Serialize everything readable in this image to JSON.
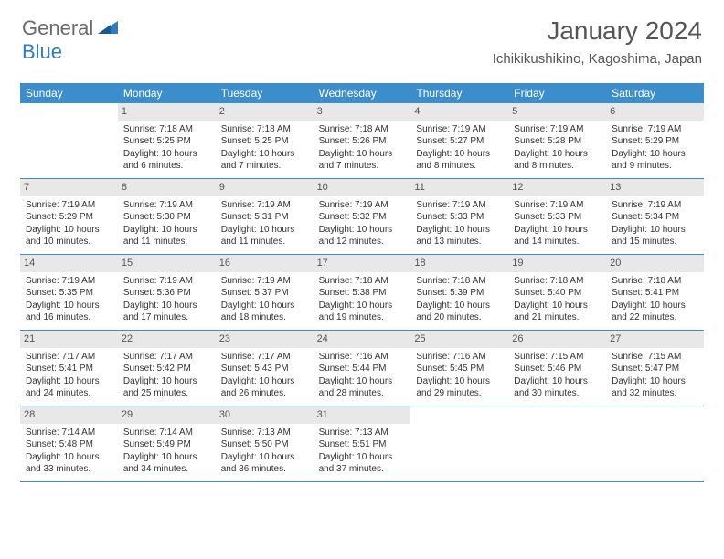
{
  "brand": {
    "part1": "General",
    "part2": "Blue"
  },
  "title": "January 2024",
  "location": "Ichikikushikino, Kagoshima, Japan",
  "colors": {
    "header_bg": "#3c8dcc",
    "header_text": "#ffffff",
    "daynum_bg": "#e8e8e8",
    "text": "#333333",
    "rule": "#3c8dcc",
    "brand_gray": "#6a6a6a",
    "brand_blue": "#2f7bbf"
  },
  "dayNames": [
    "Sunday",
    "Monday",
    "Tuesday",
    "Wednesday",
    "Thursday",
    "Friday",
    "Saturday"
  ],
  "weeks": [
    [
      {
        "n": "",
        "l1": "",
        "l2": "",
        "l3": "",
        "l4": ""
      },
      {
        "n": "1",
        "l1": "Sunrise: 7:18 AM",
        "l2": "Sunset: 5:25 PM",
        "l3": "Daylight: 10 hours",
        "l4": "and 6 minutes."
      },
      {
        "n": "2",
        "l1": "Sunrise: 7:18 AM",
        "l2": "Sunset: 5:25 PM",
        "l3": "Daylight: 10 hours",
        "l4": "and 7 minutes."
      },
      {
        "n": "3",
        "l1": "Sunrise: 7:18 AM",
        "l2": "Sunset: 5:26 PM",
        "l3": "Daylight: 10 hours",
        "l4": "and 7 minutes."
      },
      {
        "n": "4",
        "l1": "Sunrise: 7:19 AM",
        "l2": "Sunset: 5:27 PM",
        "l3": "Daylight: 10 hours",
        "l4": "and 8 minutes."
      },
      {
        "n": "5",
        "l1": "Sunrise: 7:19 AM",
        "l2": "Sunset: 5:28 PM",
        "l3": "Daylight: 10 hours",
        "l4": "and 8 minutes."
      },
      {
        "n": "6",
        "l1": "Sunrise: 7:19 AM",
        "l2": "Sunset: 5:29 PM",
        "l3": "Daylight: 10 hours",
        "l4": "and 9 minutes."
      }
    ],
    [
      {
        "n": "7",
        "l1": "Sunrise: 7:19 AM",
        "l2": "Sunset: 5:29 PM",
        "l3": "Daylight: 10 hours",
        "l4": "and 10 minutes."
      },
      {
        "n": "8",
        "l1": "Sunrise: 7:19 AM",
        "l2": "Sunset: 5:30 PM",
        "l3": "Daylight: 10 hours",
        "l4": "and 11 minutes."
      },
      {
        "n": "9",
        "l1": "Sunrise: 7:19 AM",
        "l2": "Sunset: 5:31 PM",
        "l3": "Daylight: 10 hours",
        "l4": "and 11 minutes."
      },
      {
        "n": "10",
        "l1": "Sunrise: 7:19 AM",
        "l2": "Sunset: 5:32 PM",
        "l3": "Daylight: 10 hours",
        "l4": "and 12 minutes."
      },
      {
        "n": "11",
        "l1": "Sunrise: 7:19 AM",
        "l2": "Sunset: 5:33 PM",
        "l3": "Daylight: 10 hours",
        "l4": "and 13 minutes."
      },
      {
        "n": "12",
        "l1": "Sunrise: 7:19 AM",
        "l2": "Sunset: 5:33 PM",
        "l3": "Daylight: 10 hours",
        "l4": "and 14 minutes."
      },
      {
        "n": "13",
        "l1": "Sunrise: 7:19 AM",
        "l2": "Sunset: 5:34 PM",
        "l3": "Daylight: 10 hours",
        "l4": "and 15 minutes."
      }
    ],
    [
      {
        "n": "14",
        "l1": "Sunrise: 7:19 AM",
        "l2": "Sunset: 5:35 PM",
        "l3": "Daylight: 10 hours",
        "l4": "and 16 minutes."
      },
      {
        "n": "15",
        "l1": "Sunrise: 7:19 AM",
        "l2": "Sunset: 5:36 PM",
        "l3": "Daylight: 10 hours",
        "l4": "and 17 minutes."
      },
      {
        "n": "16",
        "l1": "Sunrise: 7:19 AM",
        "l2": "Sunset: 5:37 PM",
        "l3": "Daylight: 10 hours",
        "l4": "and 18 minutes."
      },
      {
        "n": "17",
        "l1": "Sunrise: 7:18 AM",
        "l2": "Sunset: 5:38 PM",
        "l3": "Daylight: 10 hours",
        "l4": "and 19 minutes."
      },
      {
        "n": "18",
        "l1": "Sunrise: 7:18 AM",
        "l2": "Sunset: 5:39 PM",
        "l3": "Daylight: 10 hours",
        "l4": "and 20 minutes."
      },
      {
        "n": "19",
        "l1": "Sunrise: 7:18 AM",
        "l2": "Sunset: 5:40 PM",
        "l3": "Daylight: 10 hours",
        "l4": "and 21 minutes."
      },
      {
        "n": "20",
        "l1": "Sunrise: 7:18 AM",
        "l2": "Sunset: 5:41 PM",
        "l3": "Daylight: 10 hours",
        "l4": "and 22 minutes."
      }
    ],
    [
      {
        "n": "21",
        "l1": "Sunrise: 7:17 AM",
        "l2": "Sunset: 5:41 PM",
        "l3": "Daylight: 10 hours",
        "l4": "and 24 minutes."
      },
      {
        "n": "22",
        "l1": "Sunrise: 7:17 AM",
        "l2": "Sunset: 5:42 PM",
        "l3": "Daylight: 10 hours",
        "l4": "and 25 minutes."
      },
      {
        "n": "23",
        "l1": "Sunrise: 7:17 AM",
        "l2": "Sunset: 5:43 PM",
        "l3": "Daylight: 10 hours",
        "l4": "and 26 minutes."
      },
      {
        "n": "24",
        "l1": "Sunrise: 7:16 AM",
        "l2": "Sunset: 5:44 PM",
        "l3": "Daylight: 10 hours",
        "l4": "and 28 minutes."
      },
      {
        "n": "25",
        "l1": "Sunrise: 7:16 AM",
        "l2": "Sunset: 5:45 PM",
        "l3": "Daylight: 10 hours",
        "l4": "and 29 minutes."
      },
      {
        "n": "26",
        "l1": "Sunrise: 7:15 AM",
        "l2": "Sunset: 5:46 PM",
        "l3": "Daylight: 10 hours",
        "l4": "and 30 minutes."
      },
      {
        "n": "27",
        "l1": "Sunrise: 7:15 AM",
        "l2": "Sunset: 5:47 PM",
        "l3": "Daylight: 10 hours",
        "l4": "and 32 minutes."
      }
    ],
    [
      {
        "n": "28",
        "l1": "Sunrise: 7:14 AM",
        "l2": "Sunset: 5:48 PM",
        "l3": "Daylight: 10 hours",
        "l4": "and 33 minutes."
      },
      {
        "n": "29",
        "l1": "Sunrise: 7:14 AM",
        "l2": "Sunset: 5:49 PM",
        "l3": "Daylight: 10 hours",
        "l4": "and 34 minutes."
      },
      {
        "n": "30",
        "l1": "Sunrise: 7:13 AM",
        "l2": "Sunset: 5:50 PM",
        "l3": "Daylight: 10 hours",
        "l4": "and 36 minutes."
      },
      {
        "n": "31",
        "l1": "Sunrise: 7:13 AM",
        "l2": "Sunset: 5:51 PM",
        "l3": "Daylight: 10 hours",
        "l4": "and 37 minutes."
      },
      {
        "n": "",
        "l1": "",
        "l2": "",
        "l3": "",
        "l4": ""
      },
      {
        "n": "",
        "l1": "",
        "l2": "",
        "l3": "",
        "l4": ""
      },
      {
        "n": "",
        "l1": "",
        "l2": "",
        "l3": "",
        "l4": ""
      }
    ]
  ]
}
